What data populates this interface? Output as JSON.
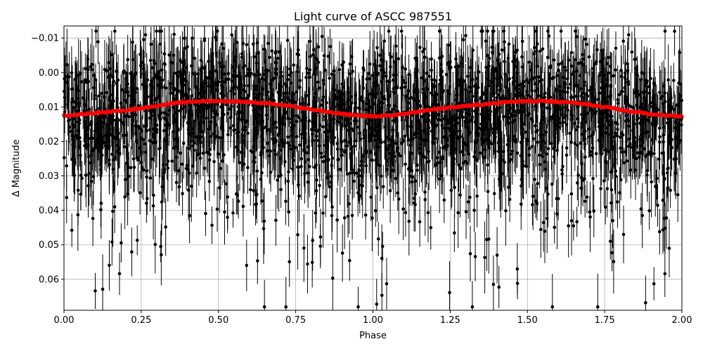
{
  "chart_data": {
    "type": "scatter",
    "title": "Light curve of ASCC 987551",
    "xlabel": "Phase",
    "ylabel": "Δ Magnitude",
    "xlim": [
      0.0,
      2.0
    ],
    "ylim": [
      0.069,
      -0.0135
    ],
    "y_inverted": true,
    "grid": true,
    "x_ticks": [
      0.0,
      0.25,
      0.5,
      0.75,
      1.0,
      1.25,
      1.5,
      1.75,
      2.0
    ],
    "x_tick_labels": [
      "0.00",
      "0.25",
      "0.50",
      "0.75",
      "1.00",
      "1.25",
      "1.50",
      "1.75",
      "2.00"
    ],
    "y_ticks": [
      -0.01,
      0.0,
      0.01,
      0.02,
      0.03,
      0.04,
      0.05,
      0.06
    ],
    "y_tick_labels": [
      "−0.01",
      "0.00",
      "0.01",
      "0.02",
      "0.03",
      "0.04",
      "0.05",
      "0.06"
    ],
    "series": [
      {
        "role": "observations",
        "color": "#000000",
        "marker": "point-with-errorbars",
        "x_range": [
          0.0,
          2.0
        ],
        "y_center": 0.012,
        "y_spread": [
          -0.012,
          0.068
        ],
        "typical_error": 0.007
      },
      {
        "role": "binned",
        "color": "#ff0000",
        "marker": "filled-dot",
        "x": [
          0.0,
          0.05,
          0.1,
          0.15,
          0.2,
          0.25,
          0.3,
          0.35,
          0.4,
          0.45,
          0.5,
          0.55,
          0.6,
          0.65,
          0.7,
          0.75,
          0.8,
          0.85,
          0.9,
          0.95,
          1.0,
          1.05,
          1.1,
          1.15,
          1.2,
          1.25,
          1.3,
          1.35,
          1.4,
          1.45,
          1.5,
          1.55,
          1.6,
          1.65,
          1.7,
          1.75,
          1.8,
          1.85,
          1.9,
          1.95,
          2.0
        ],
        "y": [
          0.0125,
          0.0122,
          0.0118,
          0.0114,
          0.011,
          0.0104,
          0.0096,
          0.0089,
          0.0085,
          0.0083,
          0.0083,
          0.0084,
          0.0086,
          0.0089,
          0.0094,
          0.01,
          0.0107,
          0.0114,
          0.012,
          0.0125,
          0.0127,
          0.0125,
          0.012,
          0.0113,
          0.0106,
          0.0101,
          0.0097,
          0.0093,
          0.0089,
          0.0085,
          0.0083,
          0.0083,
          0.0085,
          0.0088,
          0.0093,
          0.01,
          0.0108,
          0.0115,
          0.0121,
          0.0125,
          0.0127
        ]
      }
    ]
  }
}
